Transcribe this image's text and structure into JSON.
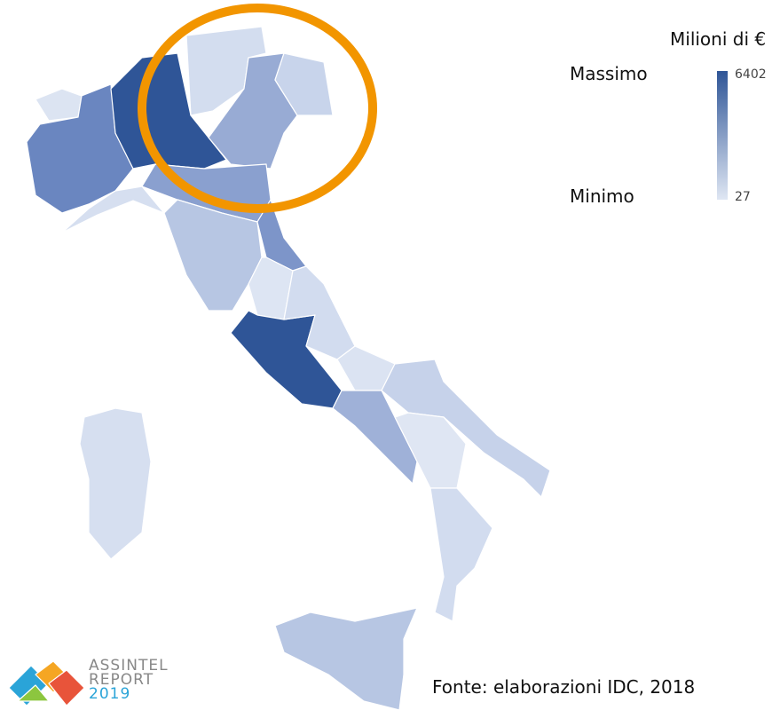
{
  "legend": {
    "title": "Milioni di €",
    "max_label": "Massimo",
    "min_label": "Minimo",
    "max": 6402,
    "min": 27
  },
  "source": "Fonte: elaborazioni IDC, 2018",
  "logo": {
    "line1": "ASSINTEL",
    "line2": "REPORT",
    "line3": "2019"
  }
}
